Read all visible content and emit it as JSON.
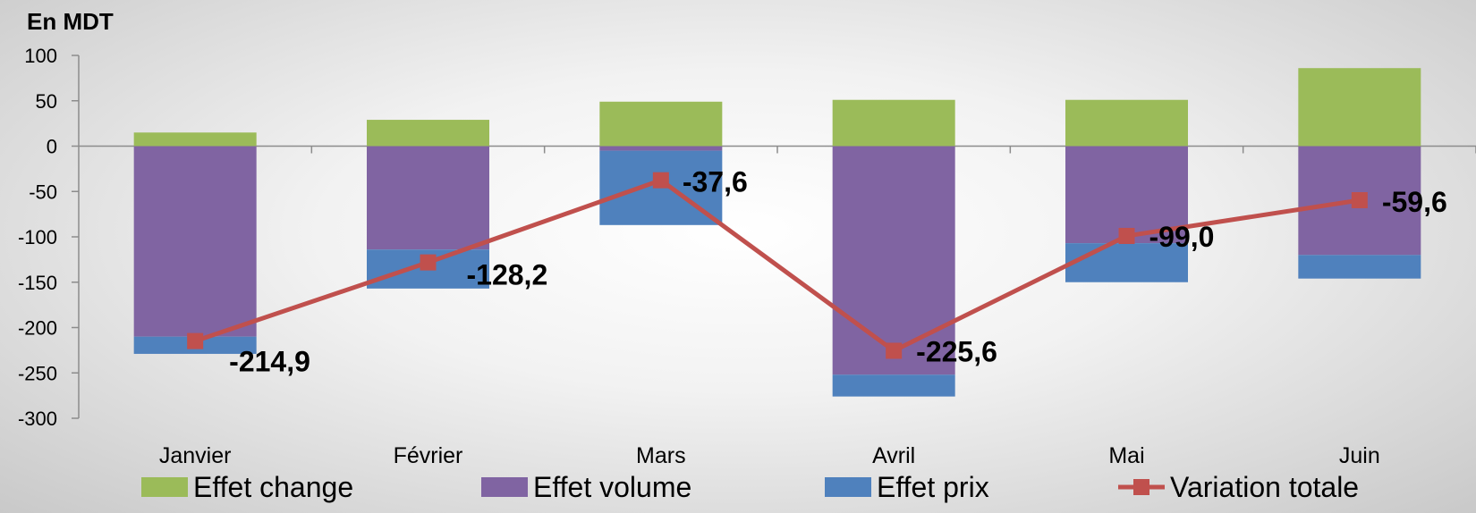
{
  "chart_data": {
    "type": "bar",
    "stacked": true,
    "unit_label": "En MDT",
    "categories": [
      "Janvier",
      "Février",
      "Mars",
      "Avril",
      "Mai",
      "Juin"
    ],
    "ylim": [
      -300,
      100
    ],
    "yticks": [
      100,
      50,
      0,
      -50,
      -100,
      -150,
      -200,
      -250,
      -300
    ],
    "grid": false,
    "legend_position": "bottom",
    "series": [
      {
        "name": "Effet change",
        "type": "bar",
        "color": "#9BBB59",
        "values": [
          15,
          29,
          49,
          51,
          51,
          86
        ]
      },
      {
        "name": "Effet volume",
        "type": "bar",
        "color": "#8064A2",
        "values": [
          -210,
          -114,
          -5,
          -252,
          -107,
          -120
        ]
      },
      {
        "name": "Effet prix",
        "type": "bar",
        "color": "#4F81BD",
        "values": [
          -19,
          -43,
          -82,
          -24,
          -43,
          -26
        ]
      },
      {
        "name": "Variation totale",
        "type": "line",
        "color": "#C0504D",
        "values": [
          -214.9,
          -128.2,
          -37.6,
          -225.6,
          -99.0,
          -59.6
        ]
      }
    ],
    "data_labels": [
      "-214,9",
      "-128,2",
      "-37,6",
      "-225,6",
      "-99,0",
      "-59,6"
    ]
  }
}
